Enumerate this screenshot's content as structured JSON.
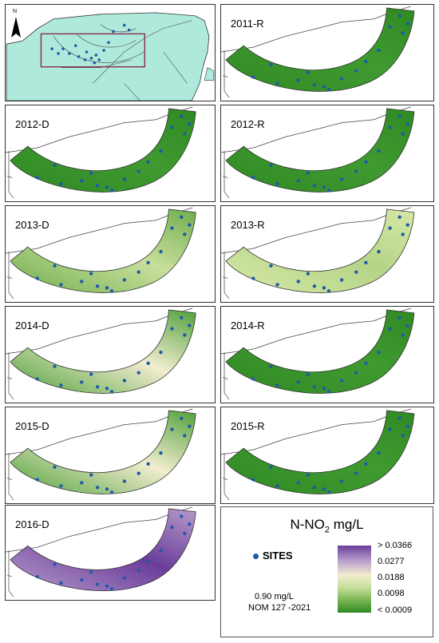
{
  "map": {
    "north_arrow": "N",
    "panels": [
      {
        "label": ""
      },
      {
        "label": "2011-R"
      },
      {
        "label": "2012-D"
      },
      {
        "label": "2012-R"
      },
      {
        "label": "2013-D"
      },
      {
        "label": "2013-R"
      },
      {
        "label": "2014-D"
      },
      {
        "label": "2014-R"
      },
      {
        "label": "2015-D"
      },
      {
        "label": "2015-R"
      },
      {
        "label": "2016-D"
      }
    ],
    "scheme": {
      "2011-R": "low",
      "2012-D": "low",
      "2012-R": "low",
      "2013-D": "mixed",
      "2013-R": "light",
      "2014-D": "mid",
      "2014-R": "low",
      "2015-D": "mid",
      "2015-R": "low",
      "2016-D": "high"
    }
  },
  "legend": {
    "title_main": "N-NO",
    "title_sub": "2",
    "title_unit": " mg/L",
    "sites_label": "SITES",
    "nom_line1": "0.90 mg/L",
    "nom_line2": "NOM 127 -2021",
    "ticks": [
      "> 0.0366",
      "0.0277",
      "0.0188",
      "0.0098",
      "< 0.0009"
    ],
    "colors": {
      "high": "#6a3d9a",
      "mid_high": "#b79bcb",
      "mid": "#f2edcf",
      "mid_low": "#c9df9c",
      "low": "#2f8a23",
      "site": "#1f5aa8",
      "land": "#aee9dc"
    }
  }
}
